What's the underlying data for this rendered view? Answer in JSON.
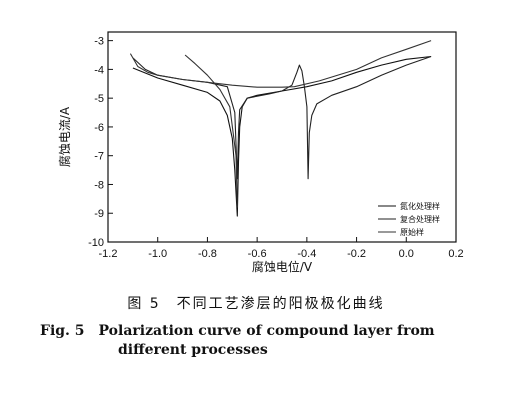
{
  "chart_data": {
    "type": "line",
    "xlabel": "腐蚀电位/V",
    "ylabel": "腐蚀电流/A",
    "xlim": [
      -1.2,
      0.2
    ],
    "ylim": [
      -10,
      -2.7
    ],
    "x_ticks": [
      -1.2,
      -1.0,
      -0.8,
      -0.6,
      -0.4,
      -0.2,
      0.0,
      0.2
    ],
    "x_tick_labels": [
      "-1.2",
      "-1.0",
      "-0.8",
      "-0.6",
      "-0.4",
      "-0.2",
      "0.0",
      "0.2"
    ],
    "y_ticks": [
      -10,
      -9,
      -8,
      -7,
      -6,
      -5,
      -4,
      -3
    ],
    "y_tick_labels": [
      "-10",
      "-9",
      "-8",
      "-7",
      "-6",
      "-5",
      "-4",
      "-3"
    ],
    "grid": false,
    "legend_position": "bottom-right",
    "series": [
      {
        "name": "氮化处理样",
        "color": "#111111",
        "points": [
          [
            -1.1,
            -3.95
          ],
          [
            -1.0,
            -4.3
          ],
          [
            -0.9,
            -4.55
          ],
          [
            -0.8,
            -4.8
          ],
          [
            -0.75,
            -5.1
          ],
          [
            -0.72,
            -5.6
          ],
          [
            -0.7,
            -6.4
          ],
          [
            -0.69,
            -7.5
          ],
          [
            -0.68,
            -9.1
          ],
          [
            -0.675,
            -7.2
          ],
          [
            -0.67,
            -6.0
          ],
          [
            -0.66,
            -5.3
          ],
          [
            -0.64,
            -5.0
          ],
          [
            -0.6,
            -4.9
          ],
          [
            -0.5,
            -4.75
          ],
          [
            -0.4,
            -4.6
          ],
          [
            -0.3,
            -4.4
          ],
          [
            -0.2,
            -4.1
          ],
          [
            -0.1,
            -3.85
          ],
          [
            0.0,
            -3.65
          ],
          [
            0.1,
            -3.55
          ]
        ]
      },
      {
        "name": "复合处理样",
        "color": "#222222",
        "points": [
          [
            -1.1,
            -3.6
          ],
          [
            -1.05,
            -4.0
          ],
          [
            -1.0,
            -4.2
          ],
          [
            -0.9,
            -4.35
          ],
          [
            -0.8,
            -4.45
          ],
          [
            -0.72,
            -4.6
          ],
          [
            -0.69,
            -5.5
          ],
          [
            -0.68,
            -7.8
          ],
          [
            -0.675,
            -6.2
          ],
          [
            -0.67,
            -5.4
          ],
          [
            -0.64,
            -5.0
          ],
          [
            -0.55,
            -4.85
          ],
          [
            -0.5,
            -4.75
          ],
          [
            -0.46,
            -4.55
          ],
          [
            -0.44,
            -4.1
          ],
          [
            -0.43,
            -3.85
          ],
          [
            -0.42,
            -4.05
          ],
          [
            -0.41,
            -4.6
          ],
          [
            -0.4,
            -5.3
          ],
          [
            -0.395,
            -7.8
          ],
          [
            -0.39,
            -6.2
          ],
          [
            -0.38,
            -5.6
          ],
          [
            -0.36,
            -5.2
          ],
          [
            -0.3,
            -4.9
          ],
          [
            -0.2,
            -4.6
          ],
          [
            -0.1,
            -4.2
          ],
          [
            0.0,
            -3.85
          ],
          [
            0.1,
            -3.55
          ]
        ]
      },
      {
        "name": "原始样",
        "color": "#333333",
        "points": [
          [
            -1.11,
            -3.45
          ],
          [
            -1.08,
            -3.9
          ],
          [
            -1.04,
            -4.1
          ],
          [
            -1.0,
            -4.2
          ],
          [
            -0.9,
            -4.35
          ],
          [
            -0.8,
            -4.45
          ],
          [
            -0.7,
            -4.55
          ],
          [
            -0.6,
            -4.62
          ],
          [
            -0.5,
            -4.62
          ],
          [
            -0.45,
            -4.6
          ],
          [
            -0.35,
            -4.4
          ],
          [
            -0.2,
            -4.0
          ],
          [
            -0.1,
            -3.6
          ],
          [
            0.0,
            -3.3
          ],
          [
            0.1,
            -3.0
          ]
        ]
      },
      {
        "name": "",
        "color": "#333333",
        "points": [
          [
            -0.89,
            -3.5
          ],
          [
            -0.85,
            -3.8
          ],
          [
            -0.8,
            -4.2
          ],
          [
            -0.75,
            -4.7
          ],
          [
            -0.71,
            -5.3
          ],
          [
            -0.695,
            -6.3
          ],
          [
            -0.685,
            -7.0
          ],
          [
            -0.68,
            -8.8
          ]
        ]
      }
    ]
  },
  "caption": {
    "cn": "图 5　不同工艺渗层的阳极极化曲线",
    "en_line1": "Fig. 5　Polarization curve of compound layer from",
    "en_line2": "different processes"
  }
}
